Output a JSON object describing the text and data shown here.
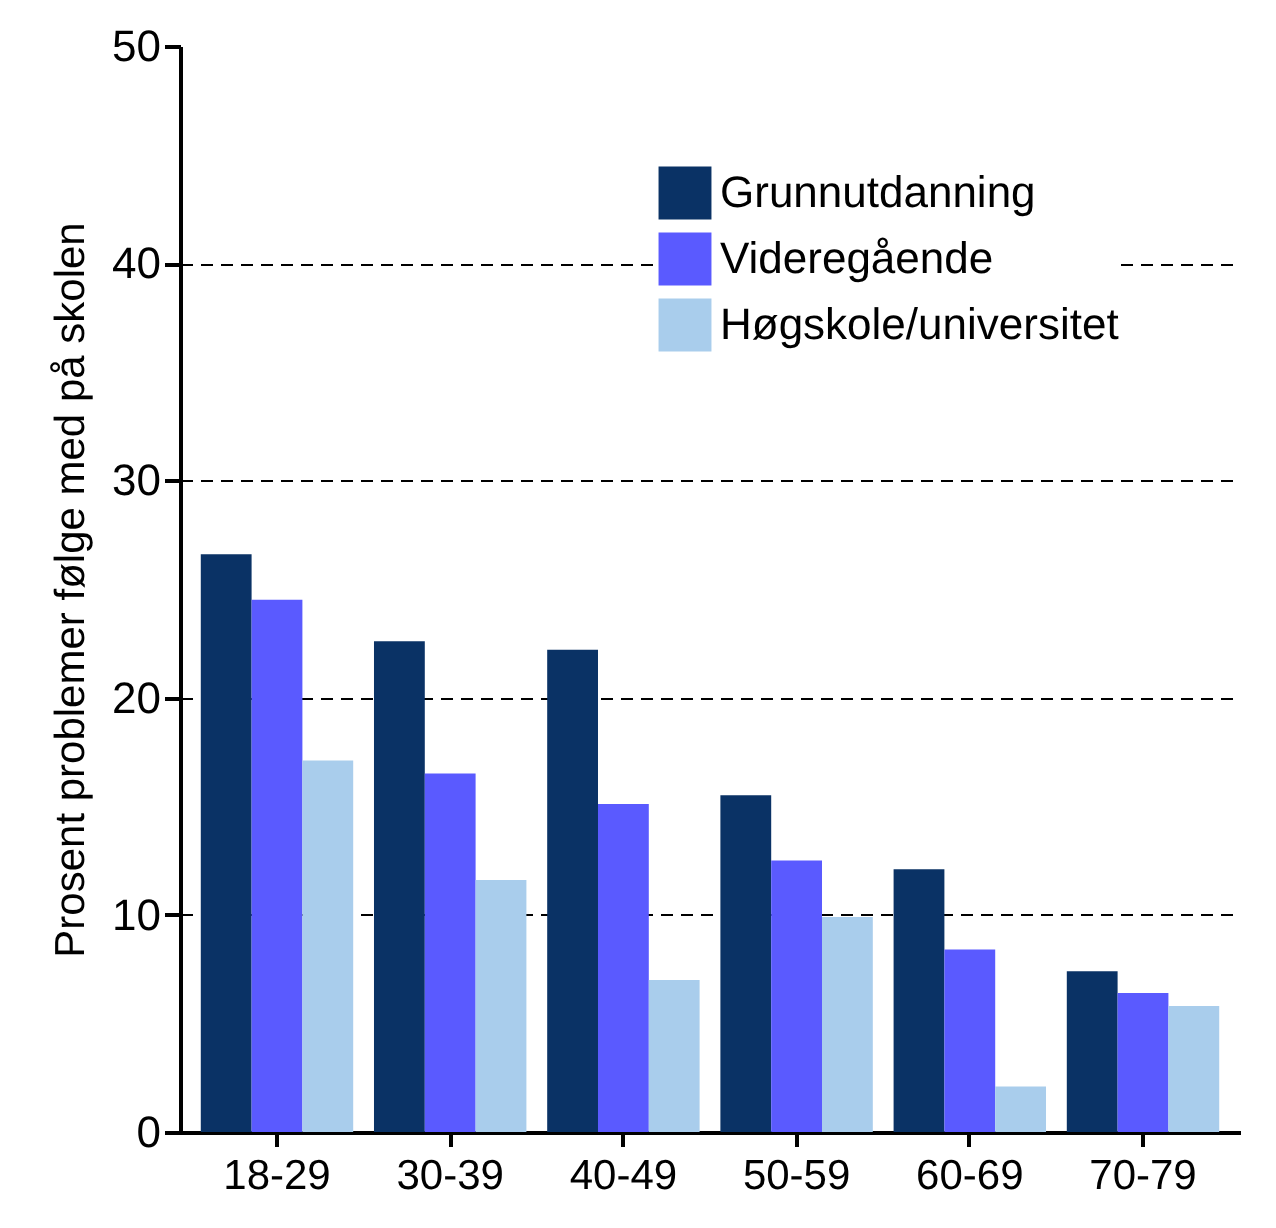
{
  "chart_data": {
    "type": "bar",
    "ylabel": "Prosent problemer følge med på skolen",
    "categories": [
      "18-29",
      "30-39",
      "40-49",
      "50-59",
      "60-69",
      "70-79"
    ],
    "series": [
      {
        "name": "Grunnutdanning",
        "color": "#0a3265",
        "values": [
          26.6,
          22.6,
          22.2,
          15.5,
          12.1,
          7.4
        ]
      },
      {
        "name": "Videregående",
        "color": "#5a5aff",
        "values": [
          24.5,
          16.5,
          15.1,
          12.5,
          8.4,
          6.4
        ]
      },
      {
        "name": "Høgskole/universitet",
        "color": "#a9cdec",
        "values": [
          17.1,
          11.6,
          7.0,
          9.9,
          2.1,
          5.8
        ]
      }
    ],
    "ylim": [
      0,
      50
    ],
    "yticks": [
      0,
      10,
      20,
      30,
      40,
      50
    ],
    "grid": "y",
    "legend": "top right"
  }
}
